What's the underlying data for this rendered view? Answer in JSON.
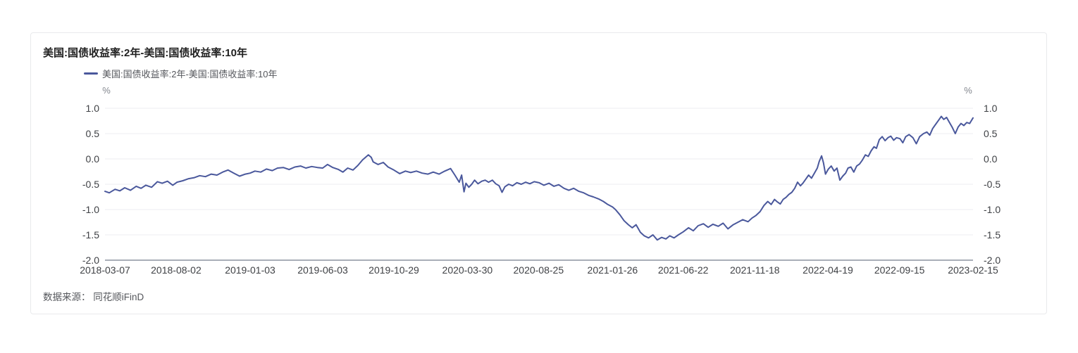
{
  "page": {
    "title": "美国:国债收益率:2年-美国:国债收益率:10年",
    "source_label": "数据来源：",
    "source_value": "同花顺iFinD"
  },
  "legend": {
    "label": "美国:国债收益率:2年-美国:国债收益率:10年"
  },
  "colors": {
    "line": "#4a589c",
    "grid": "#ededf1",
    "axis": "#a9aeb8",
    "tick_text": "#3f4145",
    "unit_text": "#83878e",
    "card_border": "#e9eaec"
  },
  "chart_data": {
    "type": "line",
    "title": "美国:国债收益率:2年-美国:国债收益率:10年",
    "unit": "%",
    "xlabel": "",
    "ylabel": "%",
    "ylim": [
      -2.0,
      1.0
    ],
    "y_ticks": [
      1.0,
      0.5,
      0.0,
      -0.5,
      -1.0,
      -1.5,
      -2.0
    ],
    "y_tick_labels": [
      "1.0",
      "0.5",
      "0.0",
      "-0.5",
      "-1.0",
      "-1.5",
      "-2.0"
    ],
    "x_range": [
      "2018-03-07",
      "2023-02-15"
    ],
    "x_tick_labels": [
      "2018-03-07",
      "2018-08-02",
      "2019-01-03",
      "2019-06-03",
      "2019-10-29",
      "2020-03-30",
      "2020-08-25",
      "2021-01-26",
      "2021-06-22",
      "2021-11-18",
      "2022-04-19",
      "2022-09-15",
      "2023-02-15"
    ],
    "grid": true,
    "legend_position": "top-left",
    "series": [
      {
        "name": "美国:国债收益率:2年-美国:国债收益率:10年",
        "color": "#4a589c",
        "points": [
          [
            "2018-03-07",
            -0.64
          ],
          [
            "2018-03-16",
            -0.67
          ],
          [
            "2018-03-28",
            -0.6
          ],
          [
            "2018-04-07",
            -0.63
          ],
          [
            "2018-04-17",
            -0.57
          ],
          [
            "2018-04-29",
            -0.62
          ],
          [
            "2018-05-11",
            -0.54
          ],
          [
            "2018-05-21",
            -0.58
          ],
          [
            "2018-05-31",
            -0.52
          ],
          [
            "2018-06-12",
            -0.56
          ],
          [
            "2018-06-24",
            -0.45
          ],
          [
            "2018-07-04",
            -0.48
          ],
          [
            "2018-07-15",
            -0.44
          ],
          [
            "2018-07-26",
            -0.52
          ],
          [
            "2018-08-04",
            -0.46
          ],
          [
            "2018-08-16",
            -0.43
          ],
          [
            "2018-08-28",
            -0.39
          ],
          [
            "2018-09-09",
            -0.37
          ],
          [
            "2018-09-20",
            -0.33
          ],
          [
            "2018-10-02",
            -0.35
          ],
          [
            "2018-10-14",
            -0.3
          ],
          [
            "2018-10-26",
            -0.32
          ],
          [
            "2018-11-07",
            -0.26
          ],
          [
            "2018-11-18",
            -0.22
          ],
          [
            "2018-11-30",
            -0.28
          ],
          [
            "2018-12-12",
            -0.34
          ],
          [
            "2018-12-24",
            -0.3
          ],
          [
            "2019-01-03",
            -0.28
          ],
          [
            "2019-01-13",
            -0.24
          ],
          [
            "2019-01-25",
            -0.26
          ],
          [
            "2019-02-06",
            -0.2
          ],
          [
            "2019-02-18",
            -0.23
          ],
          [
            "2019-03-01",
            -0.18
          ],
          [
            "2019-03-13",
            -0.17
          ],
          [
            "2019-03-25",
            -0.21
          ],
          [
            "2019-04-06",
            -0.16
          ],
          [
            "2019-04-18",
            -0.14
          ],
          [
            "2019-04-29",
            -0.18
          ],
          [
            "2019-05-11",
            -0.15
          ],
          [
            "2019-05-23",
            -0.17
          ],
          [
            "2019-06-03",
            -0.18
          ],
          [
            "2019-06-13",
            -0.11
          ],
          [
            "2019-06-24",
            -0.17
          ],
          [
            "2019-07-06",
            -0.21
          ],
          [
            "2019-07-15",
            -0.26
          ],
          [
            "2019-07-25",
            -0.18
          ],
          [
            "2019-08-05",
            -0.22
          ],
          [
            "2019-08-15",
            -0.13
          ],
          [
            "2019-08-25",
            -0.02
          ],
          [
            "2019-09-06",
            0.08
          ],
          [
            "2019-09-12",
            0.03
          ],
          [
            "2019-09-16",
            -0.06
          ],
          [
            "2019-09-26",
            -0.11
          ],
          [
            "2019-10-07",
            -0.07
          ],
          [
            "2019-10-17",
            -0.16
          ],
          [
            "2019-10-29",
            -0.22
          ],
          [
            "2019-11-10",
            -0.29
          ],
          [
            "2019-11-22",
            -0.24
          ],
          [
            "2019-12-03",
            -0.27
          ],
          [
            "2019-12-15",
            -0.24
          ],
          [
            "2019-12-27",
            -0.28
          ],
          [
            "2020-01-08",
            -0.3
          ],
          [
            "2020-01-19",
            -0.26
          ],
          [
            "2020-01-31",
            -0.3
          ],
          [
            "2020-02-12",
            -0.24
          ],
          [
            "2020-02-24",
            -0.19
          ],
          [
            "2020-03-04",
            -0.32
          ],
          [
            "2020-03-13",
            -0.46
          ],
          [
            "2020-03-18",
            -0.32
          ],
          [
            "2020-03-23",
            -0.65
          ],
          [
            "2020-03-27",
            -0.48
          ],
          [
            "2020-04-02",
            -0.56
          ],
          [
            "2020-04-08",
            -0.5
          ],
          [
            "2020-04-14",
            -0.42
          ],
          [
            "2020-04-21",
            -0.49
          ],
          [
            "2020-04-29",
            -0.44
          ],
          [
            "2020-05-06",
            -0.42
          ],
          [
            "2020-05-13",
            -0.46
          ],
          [
            "2020-05-21",
            -0.42
          ],
          [
            "2020-05-28",
            -0.49
          ],
          [
            "2020-06-04",
            -0.53
          ],
          [
            "2020-06-10",
            -0.66
          ],
          [
            "2020-06-16",
            -0.55
          ],
          [
            "2020-06-24",
            -0.5
          ],
          [
            "2020-07-02",
            -0.53
          ],
          [
            "2020-07-11",
            -0.47
          ],
          [
            "2020-07-20",
            -0.5
          ],
          [
            "2020-07-29",
            -0.46
          ],
          [
            "2020-08-07",
            -0.49
          ],
          [
            "2020-08-16",
            -0.45
          ],
          [
            "2020-08-26",
            -0.47
          ],
          [
            "2020-09-05",
            -0.52
          ],
          [
            "2020-09-16",
            -0.48
          ],
          [
            "2020-09-26",
            -0.54
          ],
          [
            "2020-10-06",
            -0.51
          ],
          [
            "2020-10-17",
            -0.58
          ],
          [
            "2020-10-27",
            -0.62
          ],
          [
            "2020-11-06",
            -0.58
          ],
          [
            "2020-11-17",
            -0.64
          ],
          [
            "2020-11-27",
            -0.67
          ],
          [
            "2020-12-07",
            -0.72
          ],
          [
            "2020-12-17",
            -0.75
          ],
          [
            "2020-12-28",
            -0.79
          ],
          [
            "2021-01-07",
            -0.84
          ],
          [
            "2021-01-16",
            -0.9
          ],
          [
            "2021-01-26",
            -0.95
          ],
          [
            "2021-02-01",
            -1.0
          ],
          [
            "2021-02-10",
            -1.1
          ],
          [
            "2021-02-19",
            -1.22
          ],
          [
            "2021-02-28",
            -1.3
          ],
          [
            "2021-03-08",
            -1.36
          ],
          [
            "2021-03-16",
            -1.3
          ],
          [
            "2021-03-25",
            -1.45
          ],
          [
            "2021-04-02",
            -1.52
          ],
          [
            "2021-04-11",
            -1.56
          ],
          [
            "2021-04-20",
            -1.5
          ],
          [
            "2021-04-29",
            -1.6
          ],
          [
            "2021-05-08",
            -1.55
          ],
          [
            "2021-05-17",
            -1.58
          ],
          [
            "2021-05-25",
            -1.52
          ],
          [
            "2021-06-03",
            -1.56
          ],
          [
            "2021-06-12",
            -1.5
          ],
          [
            "2021-06-22",
            -1.44
          ],
          [
            "2021-07-03",
            -1.36
          ],
          [
            "2021-07-13",
            -1.42
          ],
          [
            "2021-07-23",
            -1.32
          ],
          [
            "2021-08-03",
            -1.28
          ],
          [
            "2021-08-13",
            -1.35
          ],
          [
            "2021-08-23",
            -1.29
          ],
          [
            "2021-09-03",
            -1.33
          ],
          [
            "2021-09-13",
            -1.27
          ],
          [
            "2021-09-23",
            -1.38
          ],
          [
            "2021-10-04",
            -1.3
          ],
          [
            "2021-10-14",
            -1.25
          ],
          [
            "2021-10-24",
            -1.2
          ],
          [
            "2021-11-04",
            -1.24
          ],
          [
            "2021-11-12",
            -1.17
          ],
          [
            "2021-11-20",
            -1.12
          ],
          [
            "2021-11-29",
            -1.04
          ],
          [
            "2021-12-07",
            -0.92
          ],
          [
            "2021-12-15",
            -0.84
          ],
          [
            "2021-12-22",
            -0.9
          ],
          [
            "2021-12-29",
            -0.8
          ],
          [
            "2022-01-04",
            -0.85
          ],
          [
            "2022-01-10",
            -0.89
          ],
          [
            "2022-01-16",
            -0.8
          ],
          [
            "2022-01-22",
            -0.76
          ],
          [
            "2022-01-28",
            -0.7
          ],
          [
            "2022-02-03",
            -0.66
          ],
          [
            "2022-02-09",
            -0.58
          ],
          [
            "2022-02-15",
            -0.46
          ],
          [
            "2022-02-21",
            -0.53
          ],
          [
            "2022-02-26",
            -0.48
          ],
          [
            "2022-03-04",
            -0.4
          ],
          [
            "2022-03-10",
            -0.32
          ],
          [
            "2022-03-16",
            -0.38
          ],
          [
            "2022-03-22",
            -0.28
          ],
          [
            "2022-03-28",
            -0.18
          ],
          [
            "2022-04-01",
            -0.05
          ],
          [
            "2022-04-06",
            0.06
          ],
          [
            "2022-04-10",
            -0.08
          ],
          [
            "2022-04-14",
            -0.3
          ],
          [
            "2022-04-20",
            -0.2
          ],
          [
            "2022-04-26",
            -0.14
          ],
          [
            "2022-05-02",
            -0.24
          ],
          [
            "2022-05-08",
            -0.18
          ],
          [
            "2022-05-14",
            -0.42
          ],
          [
            "2022-05-20",
            -0.34
          ],
          [
            "2022-05-26",
            -0.28
          ],
          [
            "2022-05-31",
            -0.18
          ],
          [
            "2022-06-06",
            -0.16
          ],
          [
            "2022-06-12",
            -0.26
          ],
          [
            "2022-06-18",
            -0.14
          ],
          [
            "2022-06-24",
            -0.1
          ],
          [
            "2022-06-30",
            -0.02
          ],
          [
            "2022-07-06",
            0.08
          ],
          [
            "2022-07-12",
            0.05
          ],
          [
            "2022-07-18",
            0.16
          ],
          [
            "2022-07-24",
            0.24
          ],
          [
            "2022-07-29",
            0.21
          ],
          [
            "2022-08-04",
            0.38
          ],
          [
            "2022-08-10",
            0.44
          ],
          [
            "2022-08-16",
            0.36
          ],
          [
            "2022-08-22",
            0.42
          ],
          [
            "2022-08-28",
            0.45
          ],
          [
            "2022-09-03",
            0.37
          ],
          [
            "2022-09-09",
            0.42
          ],
          [
            "2022-09-16",
            0.4
          ],
          [
            "2022-09-22",
            0.32
          ],
          [
            "2022-09-28",
            0.44
          ],
          [
            "2022-10-05",
            0.48
          ],
          [
            "2022-10-13",
            0.42
          ],
          [
            "2022-10-20",
            0.3
          ],
          [
            "2022-10-27",
            0.44
          ],
          [
            "2022-11-04",
            0.5
          ],
          [
            "2022-11-11",
            0.53
          ],
          [
            "2022-11-17",
            0.47
          ],
          [
            "2022-11-23",
            0.6
          ],
          [
            "2022-11-29",
            0.68
          ],
          [
            "2022-12-05",
            0.76
          ],
          [
            "2022-12-11",
            0.84
          ],
          [
            "2022-12-16",
            0.78
          ],
          [
            "2022-12-22",
            0.82
          ],
          [
            "2022-12-28",
            0.72
          ],
          [
            "2023-01-03",
            0.62
          ],
          [
            "2023-01-09",
            0.5
          ],
          [
            "2023-01-15",
            0.63
          ],
          [
            "2023-01-21",
            0.7
          ],
          [
            "2023-01-27",
            0.66
          ],
          [
            "2023-02-02",
            0.72
          ],
          [
            "2023-02-08",
            0.7
          ],
          [
            "2023-02-15",
            0.81
          ]
        ]
      }
    ]
  }
}
